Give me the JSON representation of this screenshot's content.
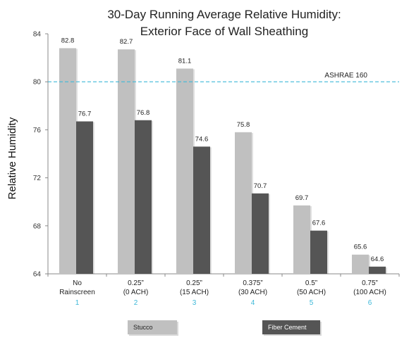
{
  "chart_data": {
    "type": "bar",
    "title_lines": [
      "30-Day Running Average Relative Humidity:",
      "Exterior Face of Wall Sheathing"
    ],
    "ylabel": "Relative Humidity",
    "xlabel": "",
    "ylim": [
      64,
      84
    ],
    "yticks": [
      64,
      68,
      72,
      76,
      80,
      84
    ],
    "categories": [
      {
        "lines": [
          "No",
          "Rainscreen"
        ],
        "index": "1"
      },
      {
        "lines": [
          "0.25”",
          "(0 ACH)"
        ],
        "index": "2"
      },
      {
        "lines": [
          "0.25”",
          "(15 ACH)"
        ],
        "index": "3"
      },
      {
        "lines": [
          "0.375”",
          "(30 ACH)"
        ],
        "index": "4"
      },
      {
        "lines": [
          "0.5”",
          "(50 ACH)"
        ],
        "index": "5"
      },
      {
        "lines": [
          "0.75”",
          "(100 ACH)"
        ],
        "index": "6"
      }
    ],
    "series": [
      {
        "name": "Stucco",
        "color": "#c0c0c0",
        "values": [
          82.8,
          82.7,
          81.1,
          75.8,
          69.7,
          65.6
        ]
      },
      {
        "name": "Fiber Cement",
        "color": "#555555",
        "values": [
          76.7,
          76.8,
          74.6,
          70.7,
          67.6,
          64.6
        ]
      }
    ],
    "reference_line": {
      "label": "ASHRAE 160",
      "value": 80,
      "color": "#3db8d8"
    },
    "grid": false,
    "legend": "bottom"
  }
}
